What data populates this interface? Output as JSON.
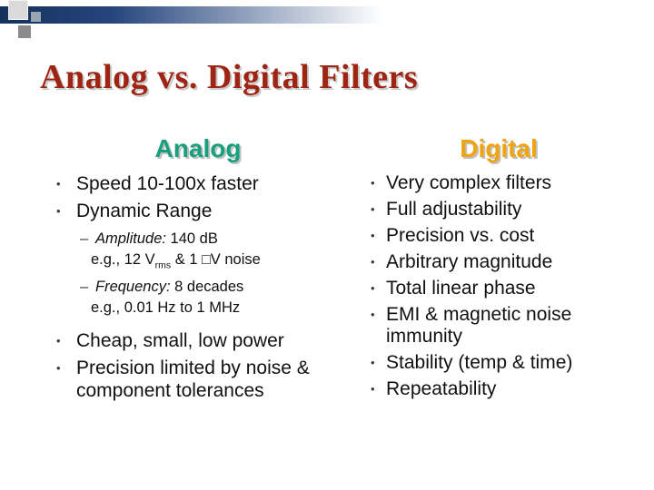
{
  "title": "Analog vs. Digital Filters",
  "markers": {
    "bullet": "•",
    "dash": "–"
  },
  "colors": {
    "title_red": "#9e2413",
    "analog_header_teal": "#18a07e",
    "digital_header_orange": "#f0a30a",
    "decor_bar_navy": "#16325c"
  },
  "analog": {
    "header": "Analog",
    "b1": "Speed 10-100x faster",
    "b2": "Dynamic Range",
    "sub1_label": "Amplitude:",
    "sub1_rest": " 140 dB",
    "eg1_p1": "e.g., 12 V",
    "eg1_sub": "rms",
    "eg1_p2": " & 1 ",
    "eg1_missing_glyph": "□",
    "eg1_p3": "V noise",
    "sub2_label": "Frequency:",
    "sub2_rest": " 8 decades",
    "eg2": "e.g., 0.01 Hz to 1 MHz",
    "b3": "Cheap, small, low power",
    "b4": "Precision limited by noise & component tolerances"
  },
  "digital": {
    "header": "Digital",
    "items": [
      "Very complex filters",
      "Full adjustability",
      "Precision vs. cost",
      "Arbitrary magnitude",
      "Total linear phase",
      "EMI & magnetic noise immunity",
      "Stability (temp & time)",
      "Repeatability"
    ]
  }
}
